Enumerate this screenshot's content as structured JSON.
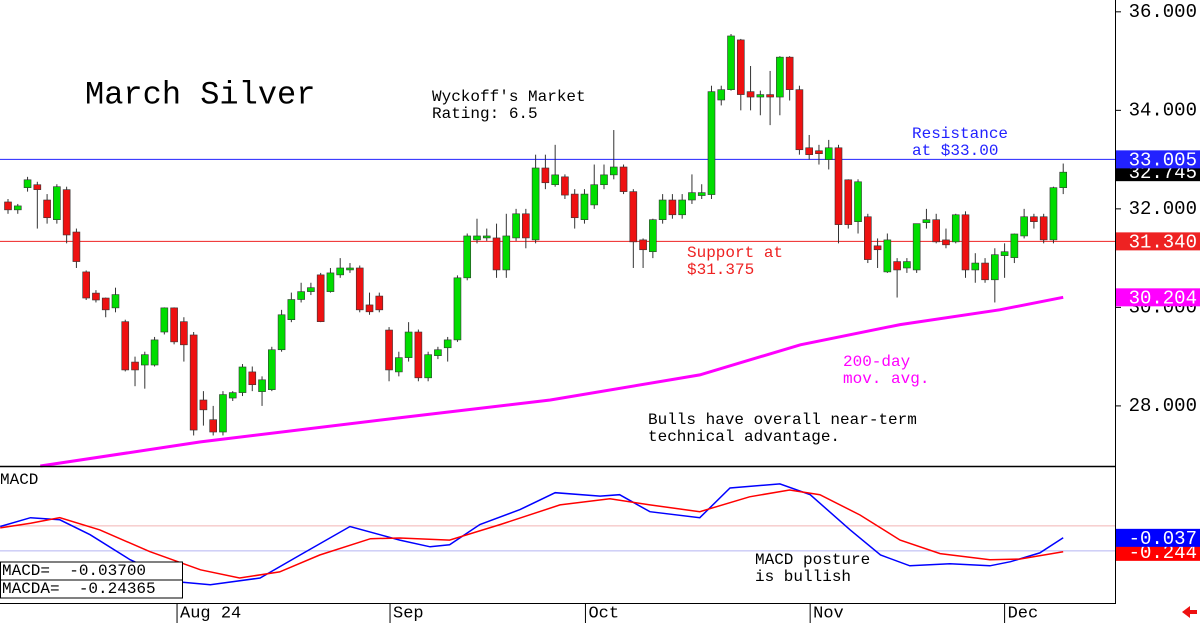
{
  "chart_data": {
    "type": "candlestick",
    "title": "March Silver",
    "xlim": [
      -0.82,
      113.3
    ],
    "xticks": [
      {
        "value": 17.3,
        "label": "Aug 24"
      },
      {
        "value": 39.1,
        "label": "Sep"
      },
      {
        "value": 59.1,
        "label": "Oct"
      },
      {
        "value": 82.1,
        "label": "Nov"
      },
      {
        "value": 102.0,
        "label": "Dec"
      }
    ],
    "ylim": [
      26.78,
      36.24
    ],
    "yticks": [
      {
        "value": 28,
        "label": "28.000"
      },
      {
        "value": 30,
        "label": "30.000"
      },
      {
        "value": 32,
        "label": "32.000"
      },
      {
        "value": 34,
        "label": "34.000"
      },
      {
        "value": 36,
        "label": "36.000"
      }
    ],
    "up_color": "#00dd00",
    "down_color": "#ee1111",
    "last_price_color": "#000000",
    "candles": {
      "x": [
        0,
        1,
        2,
        3,
        4,
        5,
        6,
        7,
        8,
        9,
        10,
        11,
        12,
        13,
        14,
        15,
        16,
        17,
        18,
        19,
        20,
        21,
        22,
        23,
        24,
        25,
        26,
        27,
        28,
        29,
        30,
        31,
        32,
        33,
        34,
        35,
        36,
        37,
        38,
        39,
        40,
        41,
        42,
        43,
        44,
        45,
        46,
        47,
        48,
        49,
        50,
        51,
        52,
        53,
        54,
        55,
        56,
        57,
        58,
        59,
        60,
        61,
        62,
        63,
        64,
        65,
        66,
        67,
        68,
        69,
        70,
        71,
        72,
        73,
        74,
        75,
        76,
        77,
        78,
        79,
        80,
        81,
        82,
        83,
        84,
        85,
        86,
        87,
        88,
        89,
        90,
        91,
        92,
        93,
        94,
        95,
        96,
        97,
        98,
        99,
        100,
        101,
        102,
        103,
        104,
        105,
        106,
        107,
        108
      ],
      "open": [
        32.14,
        31.98,
        32.43,
        32.49,
        32.18,
        31.78,
        32.39,
        31.53,
        30.72,
        30.29,
        30.19,
        29.99,
        29.71,
        28.89,
        28.83,
        28.83,
        29.5,
        29.99,
        29.71,
        29.44,
        28.12,
        27.72,
        27.47,
        28.16,
        28.27,
        28.69,
        28.29,
        28.33,
        29.14,
        29.75,
        30.16,
        30.32,
        30.66,
        30.32,
        30.66,
        30.76,
        30.8,
        30.05,
        30.23,
        29.54,
        28.69,
        28.98,
        29.5,
        28.57,
        29.02,
        29.18,
        29.34,
        30.6,
        31.37,
        31.41,
        31.41,
        30.76,
        31.41,
        31.9,
        31.37,
        32.83,
        32.49,
        32.65,
        32.3,
        31.78,
        32.08,
        32.49,
        32.69,
        32.85,
        32.35,
        31.37,
        31.13,
        31.78,
        32.18,
        31.88,
        32.18,
        32.27,
        32.29,
        34.21,
        34.42,
        35.43,
        34.38,
        34.27,
        34.32,
        34.27,
        35.08,
        34.42,
        33.24,
        33.18,
        33.0,
        33.24,
        32.59,
        31.74,
        31.84,
        31.25,
        30.72,
        30.93,
        30.8,
        30.76,
        31.72,
        31.78,
        31.37,
        31.33,
        31.88,
        30.76,
        30.9,
        30.56,
        31.05,
        31.01,
        31.45,
        31.84,
        31.84,
        31.37,
        32.43
      ],
      "high": [
        32.2,
        32.1,
        32.65,
        32.55,
        32.3,
        32.5,
        32.45,
        31.6,
        30.75,
        30.35,
        30.2,
        30.4,
        29.75,
        29.0,
        29.1,
        29.4,
        30.0,
        30.0,
        29.8,
        29.5,
        28.3,
        28.0,
        28.3,
        28.3,
        28.85,
        28.8,
        28.6,
        29.2,
        29.95,
        30.3,
        30.5,
        30.5,
        30.7,
        30.8,
        31.0,
        30.9,
        30.85,
        30.3,
        30.3,
        29.6,
        29.1,
        29.7,
        29.55,
        29.1,
        29.2,
        29.4,
        30.65,
        31.5,
        31.8,
        31.6,
        31.7,
        31.9,
        32.0,
        32.0,
        33.1,
        33.1,
        33.3,
        32.7,
        32.4,
        32.4,
        32.9,
        32.9,
        33.6,
        32.9,
        32.4,
        31.4,
        31.8,
        32.3,
        32.3,
        32.3,
        32.7,
        32.5,
        34.5,
        34.5,
        35.55,
        35.45,
        34.9,
        34.4,
        34.8,
        35.1,
        35.1,
        34.5,
        33.5,
        33.3,
        33.4,
        33.3,
        32.6,
        32.6,
        31.9,
        31.4,
        31.5,
        31.0,
        31.0,
        31.7,
        32.0,
        31.9,
        31.6,
        31.9,
        31.95,
        31.1,
        31.0,
        31.2,
        31.3,
        31.5,
        32.0,
        31.9,
        31.9,
        32.45,
        32.92
      ],
      "low": [
        31.9,
        31.9,
        32.35,
        31.6,
        31.7,
        31.7,
        31.3,
        30.8,
        30.15,
        30.1,
        29.8,
        29.9,
        28.7,
        28.4,
        28.35,
        28.8,
        29.45,
        29.25,
        28.9,
        27.4,
        27.6,
        27.4,
        27.4,
        28.1,
        28.2,
        28.3,
        28.0,
        28.3,
        29.1,
        29.7,
        30.1,
        30.25,
        29.7,
        30.3,
        30.6,
        30.7,
        29.9,
        29.85,
        29.9,
        28.5,
        28.6,
        28.9,
        28.5,
        28.5,
        28.95,
        28.9,
        29.3,
        30.55,
        31.3,
        31.35,
        30.6,
        30.6,
        31.35,
        31.2,
        31.3,
        32.4,
        32.45,
        32.2,
        31.6,
        31.7,
        32.0,
        32.4,
        32.6,
        32.3,
        30.8,
        30.8,
        31.0,
        31.7,
        31.8,
        31.8,
        32.1,
        32.2,
        32.2,
        34.1,
        34.4,
        34.0,
        34.0,
        33.9,
        33.7,
        33.9,
        34.2,
        33.1,
        33.0,
        32.9,
        32.8,
        31.3,
        31.6,
        31.5,
        30.9,
        30.8,
        30.7,
        30.2,
        30.7,
        30.7,
        31.6,
        31.3,
        31.2,
        31.3,
        30.6,
        30.5,
        30.5,
        30.1,
        30.6,
        30.9,
        31.4,
        31.6,
        31.3,
        31.3,
        32.3
      ],
      "close": [
        31.98,
        32.06,
        32.59,
        32.39,
        31.82,
        32.45,
        31.47,
        30.93,
        30.19,
        30.15,
        29.95,
        30.26,
        28.73,
        28.73,
        29.04,
        29.34,
        29.99,
        29.3,
        29.24,
        27.51,
        27.92,
        27.47,
        28.23,
        28.27,
        28.79,
        28.43,
        28.53,
        29.14,
        29.85,
        30.16,
        30.32,
        30.4,
        29.71,
        30.7,
        30.8,
        30.8,
        29.95,
        29.91,
        29.95,
        28.73,
        28.98,
        29.5,
        28.57,
        29.04,
        29.14,
        29.34,
        30.6,
        31.45,
        31.45,
        31.45,
        30.76,
        31.45,
        31.9,
        31.41,
        32.83,
        32.53,
        32.69,
        32.28,
        31.82,
        32.3,
        32.49,
        32.69,
        32.85,
        32.35,
        31.33,
        31.17,
        31.78,
        32.18,
        31.88,
        32.18,
        32.33,
        32.33,
        34.38,
        34.42,
        35.51,
        34.32,
        34.27,
        34.32,
        34.27,
        35.08,
        34.42,
        33.2,
        33.1,
        33.12,
        33.24,
        31.68,
        31.68,
        32.55,
        30.97,
        31.17,
        31.37,
        30.76,
        30.93,
        31.7,
        31.78,
        31.33,
        31.27,
        31.88,
        30.76,
        30.9,
        30.56,
        31.07,
        31.13,
        31.49,
        31.84,
        31.74,
        31.37,
        32.43,
        32.745
      ]
    },
    "hlines": [
      {
        "value": 33.005,
        "label": "33.005",
        "color": "#2222ff"
      },
      {
        "value": 31.34,
        "label": "31.340",
        "color": "#ee2222"
      }
    ],
    "ma": {
      "color": "#ff00ff",
      "x": [
        3.3,
        19.7,
        40.1,
        55.5,
        70.8,
        81.1,
        91.3,
        101.5,
        108
      ],
      "values": [
        26.78,
        27.27,
        27.76,
        28.12,
        28.63,
        29.24,
        29.65,
        29.95,
        30.204
      ]
    },
    "annotations": [
      {
        "lines": [
          "Wyckoff's Market",
          "Rating: 6.5"
        ]
      },
      {
        "lines": [
          "Resistance",
          "at $33.00"
        ]
      },
      {
        "lines": [
          "Support at",
          "$31.375"
        ]
      },
      {
        "lines": [
          "200-day",
          "mov. avg."
        ]
      },
      {
        "lines": [
          "Bulls have overall near-term",
          "technical advantage."
        ]
      }
    ],
    "macd": {
      "title": "MACD",
      "ylim": [
        -1.0,
        1.01
      ],
      "hlines": [
        {
          "value": 0.14,
          "color": "#f2b4b4"
        },
        {
          "value": -0.23,
          "color": "#b4b4f2"
        }
      ],
      "series": [
        {
          "name": "MACD",
          "color": "#0000ff",
          "x": [
            -0.8,
            2.3,
            5.3,
            8.4,
            12.5,
            17.6,
            20.7,
            25.8,
            29.9,
            35.0,
            40.1,
            43.2,
            45.2,
            48.3,
            52.4,
            56.0,
            60.6,
            62.6,
            65.7,
            70.8,
            73.9,
            79.0,
            82.1,
            86.2,
            89.3,
            92.3,
            96.4,
            100.5,
            102.6,
            105.6,
            108
          ],
          "values": [
            0.13,
            0.26,
            0.23,
            0.01,
            -0.36,
            -0.69,
            -0.73,
            -0.63,
            -0.29,
            0.13,
            -0.07,
            -0.17,
            -0.14,
            0.16,
            0.38,
            0.63,
            0.58,
            0.6,
            0.35,
            0.26,
            0.7,
            0.76,
            0.6,
            0.08,
            -0.29,
            -0.45,
            -0.42,
            -0.45,
            -0.39,
            -0.26,
            -0.037
          ]
        },
        {
          "name": "MACDA",
          "color": "#ff0000",
          "x": [
            -0.8,
            2.3,
            5.3,
            9.4,
            14.5,
            19.7,
            23.7,
            27.8,
            31.9,
            37.1,
            40.1,
            45.2,
            50.4,
            56.5,
            61.6,
            65.7,
            70.8,
            75.9,
            80.0,
            83.1,
            87.2,
            91.3,
            95.4,
            100.5,
            103.6,
            108
          ],
          "values": [
            0.11,
            0.18,
            0.26,
            0.08,
            -0.24,
            -0.51,
            -0.63,
            -0.54,
            -0.29,
            -0.05,
            -0.04,
            -0.07,
            0.16,
            0.45,
            0.54,
            0.45,
            0.35,
            0.57,
            0.67,
            0.6,
            0.3,
            -0.07,
            -0.27,
            -0.36,
            -0.35,
            -0.244
          ]
        }
      ],
      "readout": [
        "MACD=  -0.03700",
        "MACDA=  -0.24365"
      ],
      "annotation": [
        "MACD posture",
        "is bullish"
      ]
    }
  }
}
